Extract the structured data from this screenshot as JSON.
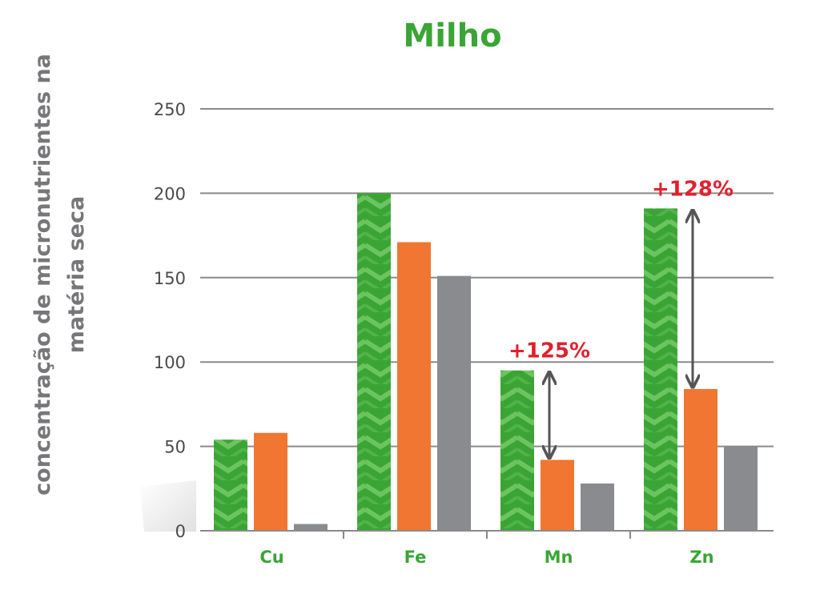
{
  "chart_data": {
    "type": "bar",
    "title": "Milho",
    "ylabel_lines": [
      "concentração de micronutrientes na",
      "matéria seca"
    ],
    "categories": [
      "Cu",
      "Fe",
      "Mn",
      "Zn"
    ],
    "ylim": [
      0,
      250
    ],
    "yticks": [
      0,
      50,
      100,
      150,
      200,
      250
    ],
    "grid": true,
    "legend": "none",
    "series": [
      {
        "values": [
          54,
          200,
          95,
          191
        ],
        "color": "#3aa535"
      },
      {
        "values": [
          58,
          171,
          42,
          84
        ],
        "color": "#f07631"
      },
      {
        "values": [
          4,
          151,
          28,
          50
        ],
        "color": "#8a8b8e"
      }
    ],
    "annotations": [
      {
        "category": "Mn",
        "text": "+125%",
        "from": 95,
        "to": 42
      },
      {
        "category": "Zn",
        "text": "+128%",
        "from": 191,
        "to": 84
      }
    ]
  }
}
